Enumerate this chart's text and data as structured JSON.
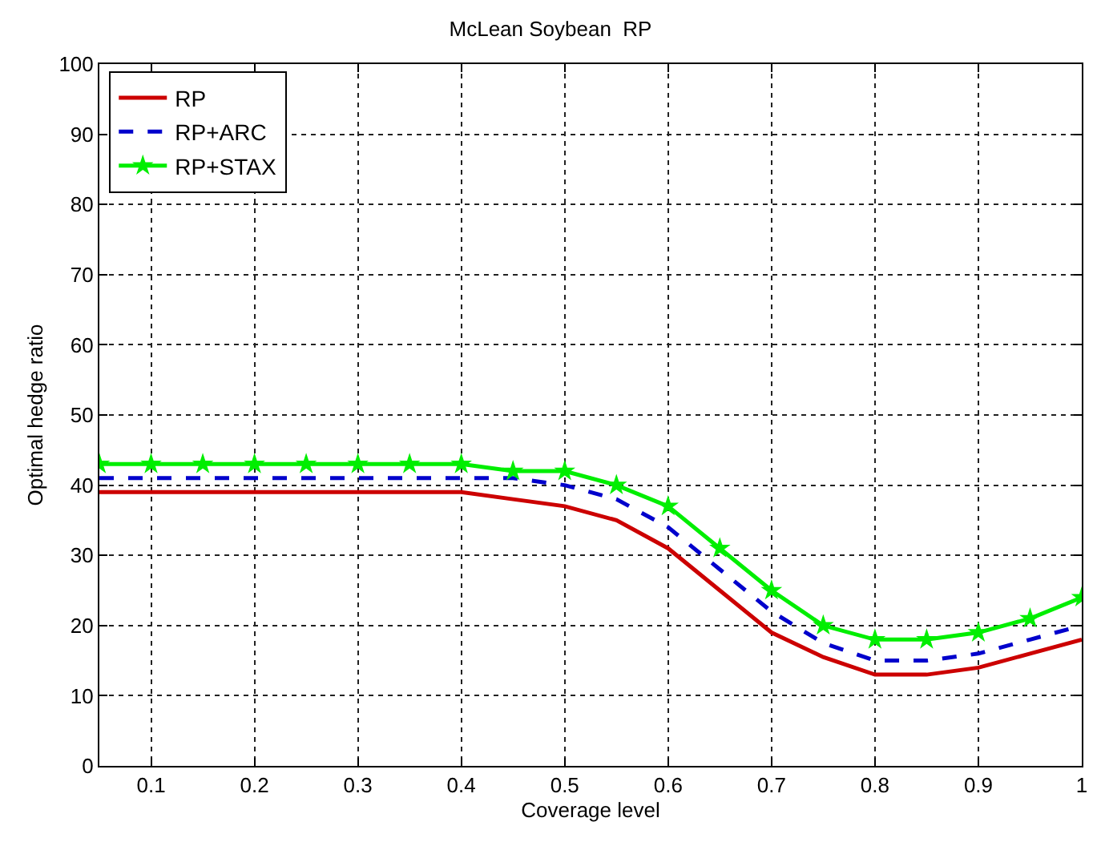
{
  "chart_data": {
    "type": "line",
    "title": "McLean Soybean  RP",
    "xlabel": "Coverage level",
    "ylabel": "Optimal hedge ratio",
    "x": [
      0.05,
      0.1,
      0.15,
      0.2,
      0.25,
      0.3,
      0.35,
      0.4,
      0.45,
      0.5,
      0.55,
      0.6,
      0.65,
      0.7,
      0.75,
      0.8,
      0.85,
      0.9,
      0.95,
      1
    ],
    "series": [
      {
        "name": "RP",
        "color": "#cc0000",
        "line_style": "solid",
        "marker": "none",
        "values": [
          39,
          39,
          39,
          39,
          39,
          39,
          39,
          39,
          38,
          37,
          35,
          31,
          25,
          19,
          15.5,
          13,
          13,
          14,
          16,
          18
        ]
      },
      {
        "name": "RP+ARC",
        "color": "#0000cc",
        "line_style": "dashed",
        "marker": "none",
        "values": [
          41,
          41,
          41,
          41,
          41,
          41,
          41,
          41,
          41,
          40,
          38,
          34,
          28,
          22,
          17.5,
          15,
          15,
          16,
          18,
          20
        ]
      },
      {
        "name": "RP+STAX",
        "color": "#00ee00",
        "line_style": "solid",
        "marker": "star",
        "values": [
          43,
          43,
          43,
          43,
          43,
          43,
          43,
          43,
          42,
          42,
          40,
          37,
          31,
          25,
          20,
          18,
          18,
          19,
          21,
          24
        ]
      }
    ],
    "xlim": [
      0.05,
      1
    ],
    "xticks": [
      0.1,
      0.2,
      0.3,
      0.4,
      0.5,
      0.6,
      0.7,
      0.8,
      0.9,
      1
    ],
    "ylim": [
      0,
      100
    ],
    "yticks": [
      0,
      10,
      20,
      30,
      40,
      50,
      60,
      70,
      80,
      90,
      100
    ],
    "grid": true,
    "legend": "top left"
  }
}
